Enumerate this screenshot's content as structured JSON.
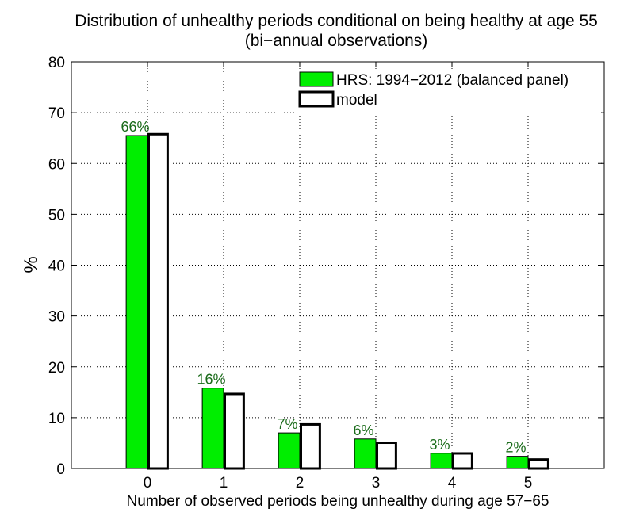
{
  "chart_data": {
    "type": "bar",
    "title": "Distribution of unhealthy periods conditional on being healthy at age 55",
    "subtitle": "(bi−annual observations)",
    "xlabel": "Number of observed periods being unhealthy during age 57−65",
    "ylabel": "%",
    "categories": [
      "0",
      "1",
      "2",
      "3",
      "4",
      "5"
    ],
    "ylim": [
      0,
      80
    ],
    "yticks": [
      "0",
      "10",
      "20",
      "30",
      "40",
      "50",
      "60",
      "70",
      "80"
    ],
    "xlim": [
      -1,
      6
    ],
    "grid": true,
    "legend_position": "top-right",
    "series": [
      {
        "name": "HRS: 1994−2012 (balanced panel)",
        "values": [
          65.5,
          15.8,
          7.0,
          5.8,
          3.0,
          2.4
        ],
        "labels": [
          "66%",
          "16%",
          "7%",
          "6%",
          "3%",
          "2%"
        ],
        "fill": "#00ee00",
        "stroke": "#000000"
      },
      {
        "name": "model",
        "values": [
          66.0,
          14.9,
          8.9,
          5.3,
          3.2,
          2.0
        ],
        "fill": "#ffffff",
        "stroke": "#000000"
      }
    ],
    "label_color": "#1a6b1a"
  }
}
